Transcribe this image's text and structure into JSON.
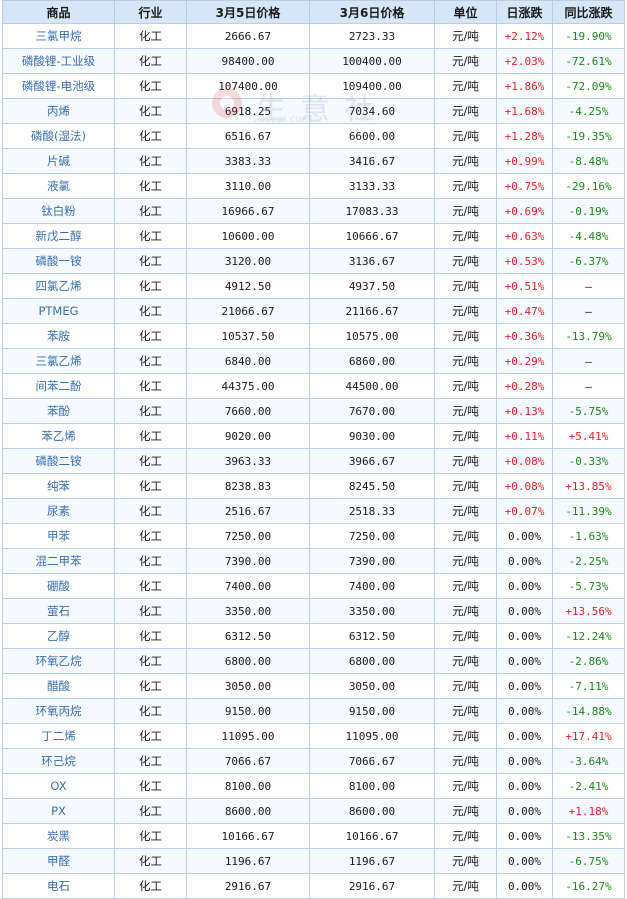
{
  "table": {
    "headers": {
      "name": "商品",
      "industry": "行业",
      "price_mar5": "3月5日价格",
      "price_mar6": "3月6日价格",
      "unit": "单位",
      "daily_change": "日涨跌",
      "yoy_change": "同比涨跌"
    },
    "colors": {
      "header_bg": "#d6e6f7",
      "border": "#b9cfe6",
      "name_text": "#3a6fb0",
      "up": "#e8202a",
      "down": "#1a8a1a"
    },
    "rows": [
      {
        "name": "三氯甲烷",
        "industry": "化工",
        "p1": "2666.67",
        "p2": "2723.33",
        "unit": "元/吨",
        "daily": "+2.12%",
        "yoy": "-19.90%"
      },
      {
        "name": "磷酸锂-工业级",
        "industry": "化工",
        "p1": "98400.00",
        "p2": "100400.00",
        "unit": "元/吨",
        "daily": "+2.03%",
        "yoy": "-72.61%"
      },
      {
        "name": "磷酸锂-电池级",
        "industry": "化工",
        "p1": "107400.00",
        "p2": "109400.00",
        "unit": "元/吨",
        "daily": "+1.86%",
        "yoy": "-72.09%"
      },
      {
        "name": "丙烯",
        "industry": "化工",
        "p1": "6918.25",
        "p2": "7034.60",
        "unit": "元/吨",
        "daily": "+1.68%",
        "yoy": "-4.25%"
      },
      {
        "name": "磷酸(湿法)",
        "industry": "化工",
        "p1": "6516.67",
        "p2": "6600.00",
        "unit": "元/吨",
        "daily": "+1.28%",
        "yoy": "-19.35%"
      },
      {
        "name": "片碱",
        "industry": "化工",
        "p1": "3383.33",
        "p2": "3416.67",
        "unit": "元/吨",
        "daily": "+0.99%",
        "yoy": "-8.48%"
      },
      {
        "name": "液氯",
        "industry": "化工",
        "p1": "3110.00",
        "p2": "3133.33",
        "unit": "元/吨",
        "daily": "+0.75%",
        "yoy": "-29.16%"
      },
      {
        "name": "钛白粉",
        "industry": "化工",
        "p1": "16966.67",
        "p2": "17083.33",
        "unit": "元/吨",
        "daily": "+0.69%",
        "yoy": "-0.19%"
      },
      {
        "name": "新戊二醇",
        "industry": "化工",
        "p1": "10600.00",
        "p2": "10666.67",
        "unit": "元/吨",
        "daily": "+0.63%",
        "yoy": "-4.48%"
      },
      {
        "name": "磷酸一铵",
        "industry": "化工",
        "p1": "3120.00",
        "p2": "3136.67",
        "unit": "元/吨",
        "daily": "+0.53%",
        "yoy": "-6.37%"
      },
      {
        "name": "四氯乙烯",
        "industry": "化工",
        "p1": "4912.50",
        "p2": "4937.50",
        "unit": "元/吨",
        "daily": "+0.51%",
        "yoy": "—"
      },
      {
        "name": "PTMEG",
        "industry": "化工",
        "p1": "21066.67",
        "p2": "21166.67",
        "unit": "元/吨",
        "daily": "+0.47%",
        "yoy": "—"
      },
      {
        "name": "苯胺",
        "industry": "化工",
        "p1": "10537.50",
        "p2": "10575.00",
        "unit": "元/吨",
        "daily": "+0.36%",
        "yoy": "-13.79%"
      },
      {
        "name": "三氯乙烯",
        "industry": "化工",
        "p1": "6840.00",
        "p2": "6860.00",
        "unit": "元/吨",
        "daily": "+0.29%",
        "yoy": "—"
      },
      {
        "name": "间苯二酚",
        "industry": "化工",
        "p1": "44375.00",
        "p2": "44500.00",
        "unit": "元/吨",
        "daily": "+0.28%",
        "yoy": "—"
      },
      {
        "name": "苯酚",
        "industry": "化工",
        "p1": "7660.00",
        "p2": "7670.00",
        "unit": "元/吨",
        "daily": "+0.13%",
        "yoy": "-5.75%"
      },
      {
        "name": "苯乙烯",
        "industry": "化工",
        "p1": "9020.00",
        "p2": "9030.00",
        "unit": "元/吨",
        "daily": "+0.11%",
        "yoy": "+5.41%"
      },
      {
        "name": "磷酸二铵",
        "industry": "化工",
        "p1": "3963.33",
        "p2": "3966.67",
        "unit": "元/吨",
        "daily": "+0.08%",
        "yoy": "-0.33%"
      },
      {
        "name": "纯苯",
        "industry": "化工",
        "p1": "8238.83",
        "p2": "8245.50",
        "unit": "元/吨",
        "daily": "+0.08%",
        "yoy": "+13.85%"
      },
      {
        "name": "尿素",
        "industry": "化工",
        "p1": "2516.67",
        "p2": "2518.33",
        "unit": "元/吨",
        "daily": "+0.07%",
        "yoy": "-11.39%"
      },
      {
        "name": "甲苯",
        "industry": "化工",
        "p1": "7250.00",
        "p2": "7250.00",
        "unit": "元/吨",
        "daily": "0.00%",
        "yoy": "-1.63%"
      },
      {
        "name": "混二甲苯",
        "industry": "化工",
        "p1": "7390.00",
        "p2": "7390.00",
        "unit": "元/吨",
        "daily": "0.00%",
        "yoy": "-2.25%"
      },
      {
        "name": "硼酸",
        "industry": "化工",
        "p1": "7400.00",
        "p2": "7400.00",
        "unit": "元/吨",
        "daily": "0.00%",
        "yoy": "-5.73%"
      },
      {
        "name": "萤石",
        "industry": "化工",
        "p1": "3350.00",
        "p2": "3350.00",
        "unit": "元/吨",
        "daily": "0.00%",
        "yoy": "+13.56%"
      },
      {
        "name": "乙醇",
        "industry": "化工",
        "p1": "6312.50",
        "p2": "6312.50",
        "unit": "元/吨",
        "daily": "0.00%",
        "yoy": "-12.24%"
      },
      {
        "name": "环氧乙烷",
        "industry": "化工",
        "p1": "6800.00",
        "p2": "6800.00",
        "unit": "元/吨",
        "daily": "0.00%",
        "yoy": "-2.86%"
      },
      {
        "name": "醋酸",
        "industry": "化工",
        "p1": "3050.00",
        "p2": "3050.00",
        "unit": "元/吨",
        "daily": "0.00%",
        "yoy": "-7.11%"
      },
      {
        "name": "环氧丙烷",
        "industry": "化工",
        "p1": "9150.00",
        "p2": "9150.00",
        "unit": "元/吨",
        "daily": "0.00%",
        "yoy": "-14.88%"
      },
      {
        "name": "丁二烯",
        "industry": "化工",
        "p1": "11095.00",
        "p2": "11095.00",
        "unit": "元/吨",
        "daily": "0.00%",
        "yoy": "+17.41%"
      },
      {
        "name": "环己烷",
        "industry": "化工",
        "p1": "7066.67",
        "p2": "7066.67",
        "unit": "元/吨",
        "daily": "0.00%",
        "yoy": "-3.64%"
      },
      {
        "name": "OX",
        "industry": "化工",
        "p1": "8100.00",
        "p2": "8100.00",
        "unit": "元/吨",
        "daily": "0.00%",
        "yoy": "-2.41%"
      },
      {
        "name": "PX",
        "industry": "化工",
        "p1": "8600.00",
        "p2": "8600.00",
        "unit": "元/吨",
        "daily": "0.00%",
        "yoy": "+1.18%"
      },
      {
        "name": "炭黑",
        "industry": "化工",
        "p1": "10166.67",
        "p2": "10166.67",
        "unit": "元/吨",
        "daily": "0.00%",
        "yoy": "-13.35%"
      },
      {
        "name": "甲醛",
        "industry": "化工",
        "p1": "1196.67",
        "p2": "1196.67",
        "unit": "元/吨",
        "daily": "0.00%",
        "yoy": "-6.75%"
      },
      {
        "name": "电石",
        "industry": "化工",
        "p1": "2916.67",
        "p2": "2916.67",
        "unit": "元/吨",
        "daily": "0.00%",
        "yoy": "-16.27%"
      }
    ]
  },
  "watermark": {
    "text": "生意社",
    "url": "100ppi.com"
  }
}
